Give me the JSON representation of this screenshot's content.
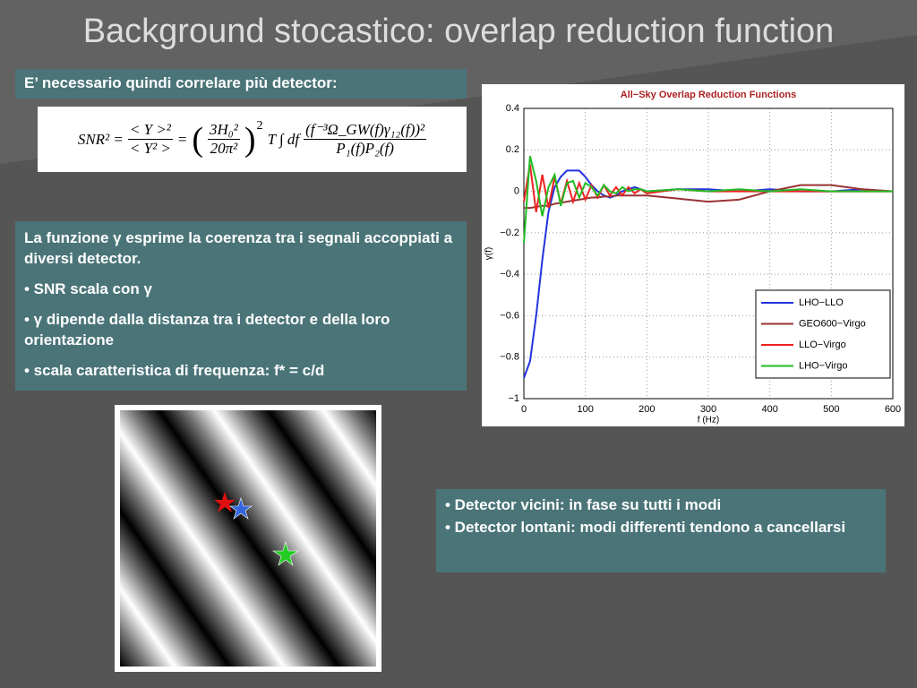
{
  "title": "Background stocastico: overlap reduction function",
  "box1": {
    "text": "E’ necessario quindi correlare più detector:"
  },
  "formula": {
    "lhs": "SNR² =",
    "frac1_num": "< Y >²",
    "frac1_den": "< Y² >",
    "eq2": "=",
    "frac2_num": "3H₀²",
    "frac2_den": "20π²",
    "power": "2",
    "integral": "T ∫ df",
    "frac3_num": "(f⁻³Ω_GW(f)γ₁₂(f))²",
    "frac3_den": "P₁(f)P₂(f)"
  },
  "box2": {
    "paragraphs": [
      "La funzione γ esprime la coerenza tra i segnali accoppiati a diversi detector.",
      "• SNR scala con γ",
      "• γ dipende dalla distanza tra i detector e della loro orientazione",
      "• scala caratteristica di frequenza: f* = c/d"
    ]
  },
  "box3": {
    "paragraphs": [
      "• Detector vicini: in fase su tutti i modi",
      "• Detector lontani: modi differenti tendono a cancellarsi"
    ]
  },
  "chart_data": {
    "type": "line",
    "title": "All−Sky Overlap Reduction Functions",
    "xlabel": "f (Hz)",
    "ylabel": "γ(f)",
    "x": [
      0,
      10,
      20,
      30,
      40,
      50,
      60,
      70,
      80,
      90,
      100,
      110,
      120,
      130,
      140,
      150,
      160,
      170,
      180,
      190,
      200,
      250,
      300,
      350,
      400,
      450,
      500,
      550,
      600
    ],
    "xlim": [
      0,
      600
    ],
    "ylim": [
      -1,
      0.4
    ],
    "xticks": [
      0,
      100,
      200,
      300,
      400,
      500,
      600
    ],
    "yticks": [
      0.4,
      0.2,
      0,
      {
        "value": -0.2,
        "label": "−0.2"
      },
      {
        "value": -0.4,
        "label": "−0.4"
      },
      {
        "value": -0.6,
        "label": "−0.6"
      },
      {
        "value": -0.8,
        "label": "−0.8"
      },
      {
        "value": -1,
        "label": "−1"
      }
    ],
    "grid": true,
    "legend": "lower right",
    "series": [
      {
        "name": "LHO−LLO",
        "color": "#2233dd",
        "values": [
          -0.9,
          -0.82,
          -0.6,
          -0.33,
          -0.1,
          0.02,
          0.07,
          0.1,
          0.1,
          0.1,
          0.07,
          0.03,
          0.0,
          -0.02,
          -0.03,
          -0.02,
          0,
          0.01,
          0.02,
          0.01,
          0,
          0.01,
          0.01,
          0,
          0.01,
          0,
          0,
          0.01,
          0
        ]
      },
      {
        "name": "GEO600−Virgo",
        "color": "#993333",
        "values": [
          -0.08,
          -0.08,
          -0.075,
          -0.07,
          -0.07,
          -0.06,
          -0.055,
          -0.05,
          -0.045,
          -0.04,
          -0.035,
          -0.03,
          -0.03,
          -0.025,
          -0.025,
          -0.02,
          -0.02,
          -0.02,
          -0.02,
          -0.02,
          -0.02,
          -0.035,
          -0.05,
          -0.04,
          0,
          0.03,
          0.03,
          0.01,
          0
        ]
      },
      {
        "name": "LLO−Virgo",
        "color": "#ee2222",
        "values": [
          -0.05,
          0.13,
          -0.1,
          0.08,
          -0.08,
          0.07,
          -0.06,
          0.05,
          -0.05,
          0.04,
          -0.04,
          0.03,
          -0.03,
          0.03,
          -0.02,
          0.02,
          -0.02,
          0.02,
          -0.01,
          0.01,
          -0.01,
          0.01,
          0,
          0,
          0,
          0,
          0,
          0,
          0
        ]
      },
      {
        "name": "LHO−Virgo",
        "color": "#22bb22",
        "values": [
          -0.25,
          0.17,
          0.05,
          -0.12,
          0.02,
          0.08,
          -0.07,
          0.04,
          0.05,
          -0.03,
          0.04,
          0.02,
          -0.02,
          0.03,
          0,
          -0.01,
          0.02,
          0,
          0.01,
          0.01,
          0,
          0.01,
          0,
          0.01,
          0,
          0.01,
          0,
          0,
          0
        ]
      }
    ]
  }
}
